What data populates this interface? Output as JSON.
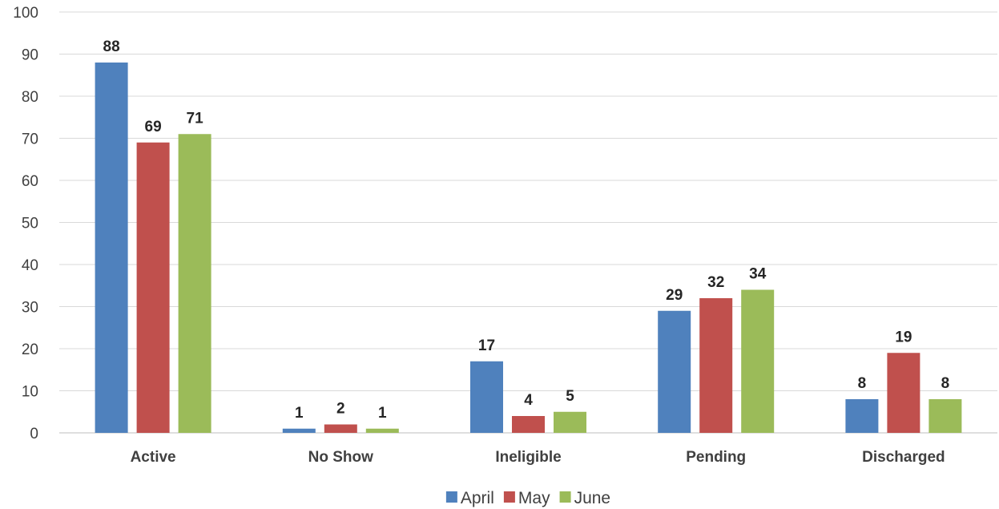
{
  "chart_data": {
    "type": "bar",
    "title": "",
    "xlabel": "",
    "ylabel": "",
    "categories": [
      "Active",
      "No Show",
      "Ineligible",
      "Pending",
      "Discharged"
    ],
    "series": [
      {
        "name": "April",
        "color": "#4F81BD",
        "values": [
          88,
          1,
          17,
          29,
          8
        ]
      },
      {
        "name": "May",
        "color": "#C0504D",
        "values": [
          69,
          2,
          4,
          32,
          19
        ]
      },
      {
        "name": "June",
        "color": "#9BBB59",
        "values": [
          71,
          1,
          5,
          34,
          8
        ]
      }
    ],
    "ylim": [
      0,
      100
    ],
    "yticks": [
      0,
      10,
      20,
      30,
      40,
      50,
      60,
      70,
      80,
      90,
      100
    ],
    "grid": true,
    "legend": "bottom",
    "data_labels": true
  }
}
